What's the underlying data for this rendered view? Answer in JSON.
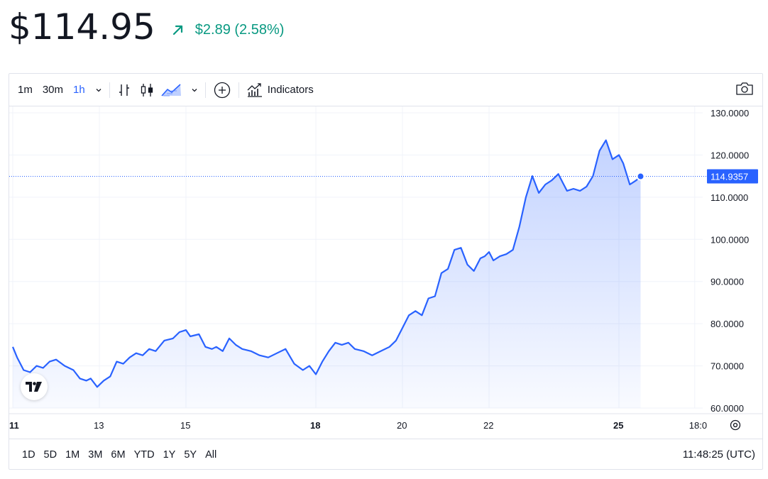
{
  "header": {
    "price": "$114.95",
    "change": "$2.89 (2.58%)",
    "change_color": "#089981",
    "change_icon": "arrow-up-right-icon"
  },
  "toolbar": {
    "intervals": [
      "1m",
      "30m",
      "1h"
    ],
    "active_interval": "1h",
    "indicators_label": "Indicators",
    "icons": [
      "chevron-down-icon",
      "bar-chart-icon",
      "candle-chart-icon",
      "area-chart-icon",
      "chevron-down-icon",
      "add-compare-icon",
      "indicators-icon",
      "camera-icon"
    ]
  },
  "range_buttons": [
    "1D",
    "5D",
    "1M",
    "3M",
    "6M",
    "YTD",
    "1Y",
    "5Y",
    "All"
  ],
  "clock": "11:48:25 (UTC)",
  "chart_data": {
    "type": "area",
    "line_color": "#2962ff",
    "y_ticks": [
      "130.0000",
      "120.0000",
      "110.0000",
      "100.0000",
      "90.0000",
      "80.0000",
      "70.0000",
      "60.0000"
    ],
    "ylim": [
      60,
      130
    ],
    "x_ticks": [
      {
        "label": "11",
        "day": 11,
        "bold": true
      },
      {
        "label": "13",
        "day": 13,
        "bold": false
      },
      {
        "label": "15",
        "day": 15,
        "bold": false
      },
      {
        "label": "18",
        "day": 18,
        "bold": true
      },
      {
        "label": "20",
        "day": 20,
        "bold": false
      },
      {
        "label": "22",
        "day": 22,
        "bold": false
      },
      {
        "label": "25",
        "day": 25,
        "bold": true
      },
      {
        "label": "18:0",
        "day": 26.75,
        "bold": false
      }
    ],
    "last_price_label": "114.9357",
    "last_value": 114.9357,
    "x": [
      11.0,
      11.1,
      11.25,
      11.4,
      11.55,
      11.7,
      11.85,
      12.0,
      12.2,
      12.4,
      12.55,
      12.7,
      12.8,
      12.95,
      13.1,
      13.25,
      13.4,
      13.55,
      13.7,
      13.85,
      14.0,
      14.15,
      14.3,
      14.5,
      14.7,
      14.85,
      15.0,
      15.1,
      15.3,
      15.45,
      15.6,
      15.7,
      15.85,
      16.0,
      16.15,
      16.3,
      16.5,
      16.7,
      16.9,
      17.1,
      17.3,
      17.5,
      17.7,
      17.85,
      18.0,
      18.15,
      18.3,
      18.45,
      18.6,
      18.75,
      18.9,
      19.1,
      19.3,
      19.5,
      19.7,
      19.85,
      20.0,
      20.15,
      20.3,
      20.45,
      20.6,
      20.75,
      20.9,
      21.05,
      21.2,
      21.35,
      21.5,
      21.65,
      21.8,
      21.9,
      22.0,
      22.1,
      22.25,
      22.4,
      22.55,
      22.7,
      22.85,
      23.0,
      23.15,
      23.3,
      23.45,
      23.6,
      23.7,
      23.8,
      23.95,
      24.1,
      24.25,
      24.4,
      24.55,
      24.7,
      24.85,
      25.0,
      25.1,
      25.25,
      25.4,
      25.5,
      25.6,
      25.7,
      25.8,
      25.9,
      26.05,
      26.15,
      26.25
    ],
    "y": [
      74.5,
      72.0,
      69.0,
      68.5,
      70.0,
      69.5,
      71.0,
      71.5,
      70.0,
      69.0,
      67.0,
      66.5,
      67.0,
      65.0,
      66.5,
      67.5,
      71.0,
      70.5,
      72.0,
      73.0,
      72.5,
      74.0,
      73.5,
      76.0,
      76.5,
      78.0,
      78.5,
      77.0,
      77.5,
      74.5,
      74.0,
      74.5,
      73.5,
      76.5,
      75.0,
      74.0,
      73.5,
      72.5,
      72.0,
      73.0,
      74.0,
      70.5,
      69.0,
      70.0,
      68.0,
      71.0,
      73.5,
      75.5,
      75.0,
      75.5,
      74.0,
      73.5,
      72.5,
      73.5,
      74.5,
      76.0,
      79.0,
      82.0,
      83.0,
      82.0,
      86.0,
      86.5,
      92.0,
      93.0,
      97.5,
      98.0,
      94.0,
      92.5,
      95.5,
      96.0,
      97.0,
      95.0,
      96.0,
      96.5,
      97.5,
      103.0,
      110.0,
      115.0,
      111.0,
      113.0,
      114.0,
      115.5,
      113.5,
      111.5,
      112.0,
      111.5,
      112.5,
      115.0,
      121.0,
      123.5,
      119.0,
      120.0,
      118.0,
      113.0,
      114.0,
      114.9357,
      114.9357,
      114.9357,
      114.9357,
      114.9357,
      114.9357,
      114.9357,
      114.9357
    ]
  }
}
